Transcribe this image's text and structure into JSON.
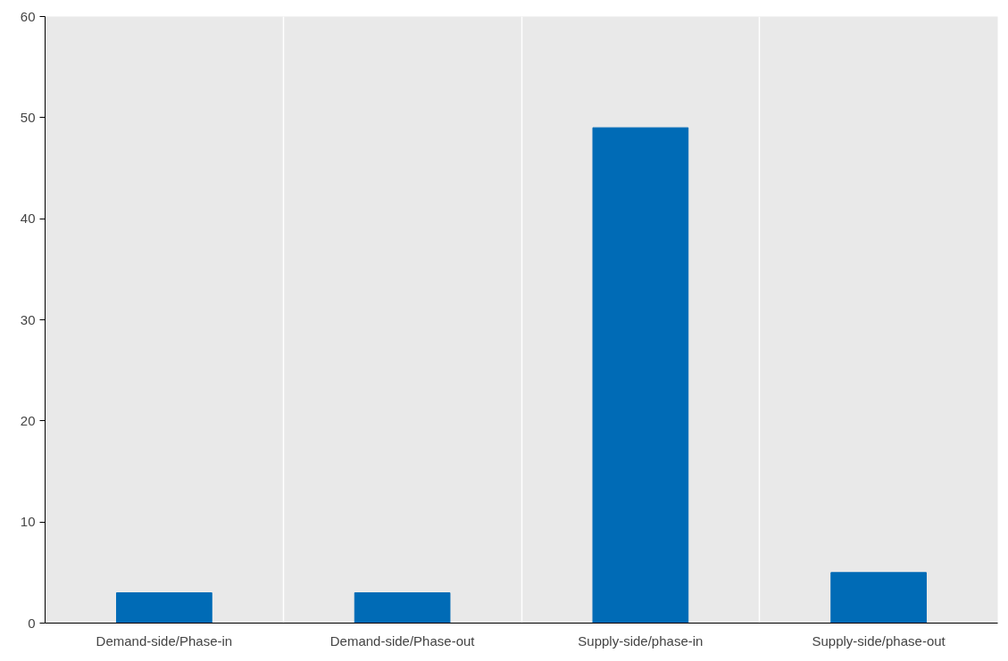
{
  "chart_data": {
    "type": "bar",
    "categories": [
      "Demand-side/Phase-in",
      "Demand-side/Phase-out",
      "Supply-side/phase-in",
      "Supply-side/phase-out"
    ],
    "values": [
      3,
      3,
      49,
      5
    ],
    "color": "#006bb6",
    "ylim": [
      0,
      60
    ],
    "yticks": [
      0,
      10,
      20,
      30,
      40,
      50,
      60
    ],
    "grid": "x"
  }
}
